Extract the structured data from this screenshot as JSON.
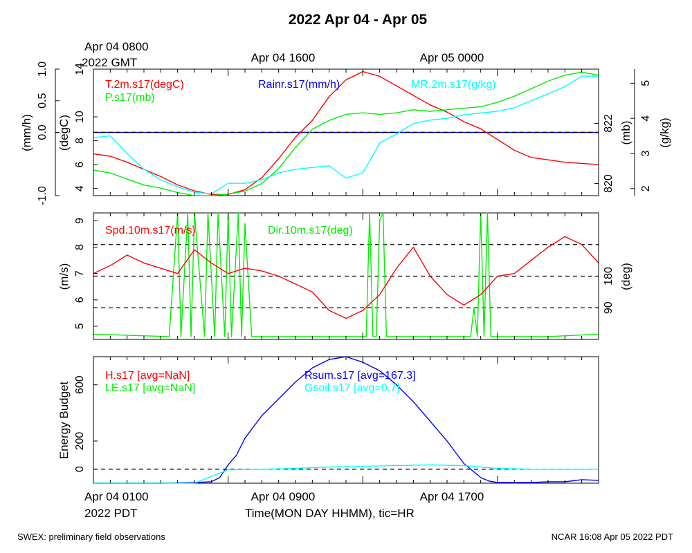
{
  "title": "2022 Apr 04 - Apr 05",
  "top_time_labels": {
    "first_line1": "Apr 04 0800",
    "first_line2": "2022 GMT",
    "second": "Apr 04 1600",
    "third": "Apr 05 0000"
  },
  "bottom_time_labels": {
    "first_line1": "Apr 04 0100",
    "first_line2": "2022 PDT",
    "second": "Apr 04 0900",
    "third": "Apr 04 1700"
  },
  "xlabel": "Time(MON DAY HHMM), tic=HR",
  "footer": {
    "left": "SWEX: preliminary field observations",
    "right": "NCAR 16:08 Apr 05 2022 PDT"
  },
  "colors": {
    "red": "#ff0000",
    "green": "#00ee00",
    "blue": "#0000ff",
    "cyan": "#00ffff",
    "black": "#000000"
  },
  "chart_data": [
    {
      "type": "line",
      "panel": "met",
      "x_unit": "hours since Apr 04 0100 PDT",
      "xlim": [
        0,
        30
      ],
      "axes": {
        "rain": {
          "label": "(mm/h)",
          "ticks": [
            "-1.0",
            "0.0",
            "0.5",
            "1.0"
          ],
          "ylim": [
            -1.0,
            1.0
          ]
        },
        "temp": {
          "label": "(degC)",
          "ticks": [
            "4",
            "6",
            "8",
            "10",
            "14"
          ],
          "ylim": [
            3.4,
            14.0
          ]
        },
        "pres": {
          "label": "(mb)",
          "ticks": [
            "820",
            "822"
          ],
          "ylim": [
            819.6,
            823.8
          ]
        },
        "mr": {
          "label": "(g/kg)",
          "ticks": [
            "2",
            "3",
            "4",
            "5"
          ],
          "ylim": [
            1.8,
            5.4
          ]
        }
      },
      "series": [
        {
          "name": "T.2m.s17(degC)",
          "axis": "temp",
          "color": "red",
          "x": [
            0,
            1,
            2,
            3,
            4,
            5,
            6,
            7,
            8,
            9,
            10,
            11,
            12,
            13,
            14,
            15,
            16,
            17,
            18,
            19,
            20,
            21,
            22,
            23,
            24,
            25,
            26,
            27,
            28,
            29,
            30
          ],
          "y": [
            6.9,
            6.7,
            6.2,
            5.6,
            5.0,
            4.3,
            3.8,
            3.5,
            3.5,
            3.9,
            4.9,
            6.5,
            8.3,
            9.7,
            11.7,
            13.1,
            13.8,
            13.4,
            12.6,
            11.8,
            11.0,
            10.4,
            9.6,
            9.0,
            8.1,
            7.2,
            6.6,
            6.4,
            6.2,
            6.1,
            6.0
          ]
        },
        {
          "name": "P.s17(mb)",
          "axis": "pres",
          "color": "green",
          "x": [
            0,
            1,
            2,
            3,
            4,
            5,
            6,
            7,
            8,
            9,
            10,
            11,
            12,
            13,
            14,
            15,
            16,
            17,
            18,
            19,
            20,
            21,
            22,
            23,
            24,
            25,
            26,
            27,
            28,
            29,
            30
          ],
          "y": [
            820.45,
            820.35,
            820.15,
            819.95,
            819.85,
            819.7,
            819.6,
            819.6,
            819.65,
            819.75,
            820.0,
            820.5,
            821.2,
            821.8,
            822.1,
            822.3,
            822.35,
            822.3,
            822.35,
            822.45,
            822.4,
            822.45,
            822.5,
            822.55,
            822.7,
            822.9,
            823.15,
            823.4,
            823.6,
            823.7,
            823.6
          ]
        },
        {
          "name": "MR.2m.s17(g/kg)",
          "axis": "mr",
          "color": "cyan",
          "x": [
            0,
            1,
            2,
            3,
            4,
            5,
            6,
            7,
            8,
            9,
            10,
            11,
            12,
            13,
            14,
            15,
            16,
            17,
            18,
            19,
            20,
            21,
            22,
            23,
            24,
            25,
            26,
            27,
            28,
            29,
            30
          ],
          "y": [
            3.45,
            3.5,
            3.0,
            2.55,
            2.25,
            2.05,
            1.9,
            1.85,
            2.15,
            2.15,
            2.25,
            2.45,
            2.55,
            2.6,
            2.65,
            2.3,
            2.45,
            3.3,
            3.55,
            3.85,
            3.95,
            4.0,
            4.1,
            4.15,
            4.2,
            4.3,
            4.5,
            4.7,
            4.9,
            5.2,
            5.2
          ]
        },
        {
          "name": "Rainr.s17(mm/h)",
          "axis": "rain",
          "color": "blue",
          "x": [
            0,
            30
          ],
          "y": [
            0.0,
            0.0
          ]
        }
      ],
      "zero_line": {
        "axis": "rain",
        "value": 0.0
      }
    },
    {
      "type": "line",
      "panel": "wind",
      "x_unit": "hours since Apr 04 0100 PDT",
      "xlim": [
        0,
        30
      ],
      "axes": {
        "spd": {
          "label": "(m/s)",
          "ticks": [
            "5",
            "6",
            "7",
            "8",
            "9"
          ],
          "ylim": [
            4.5,
            9.3
          ]
        },
        "dir": {
          "label": "(deg)",
          "ticks": [
            "90",
            "180"
          ],
          "ylim": [
            0,
            360
          ]
        }
      },
      "dashed_lines_deg": [
        90,
        180,
        270
      ],
      "series": [
        {
          "name": "Spd.10m.s17(m/s)",
          "axis": "spd",
          "color": "red",
          "x": [
            0,
            1,
            2,
            3,
            4,
            5,
            6,
            7,
            8,
            9,
            10,
            11,
            12,
            13,
            14,
            15,
            16,
            17,
            18,
            19,
            20,
            21,
            22,
            23,
            24,
            25,
            26,
            27,
            28,
            29,
            30
          ],
          "y": [
            7.0,
            7.3,
            7.7,
            7.4,
            7.2,
            7.0,
            7.9,
            7.4,
            7.0,
            7.2,
            7.1,
            6.9,
            6.6,
            6.3,
            5.6,
            5.3,
            5.6,
            6.2,
            7.2,
            8.0,
            6.9,
            6.2,
            5.8,
            6.2,
            6.9,
            7.0,
            7.5,
            8.0,
            8.4,
            8.1,
            7.4
          ]
        },
        {
          "name": "Dir.10m.s17(deg)",
          "axis": "dir",
          "color": "green",
          "x": [
            0,
            4.5,
            5.0,
            5.2,
            5.6,
            5.8,
            6.0,
            6.6,
            6.8,
            7.2,
            7.4,
            7.8,
            8.0,
            8.2,
            8.6,
            8.8,
            9.0,
            9.4,
            10,
            15,
            16.2,
            16.4,
            16.6,
            16.8,
            17.0,
            17.2,
            17.4,
            17.6,
            18,
            22,
            22.4,
            22.6,
            22.8,
            23.0,
            23.2,
            23.4,
            23.6,
            24,
            27,
            30
          ],
          "y": [
            15,
            8,
            360,
            8,
            360,
            8,
            360,
            8,
            360,
            8,
            360,
            8,
            360,
            8,
            360,
            8,
            330,
            8,
            8,
            8,
            8,
            360,
            8,
            8,
            340,
            360,
            8,
            8,
            8,
            8,
            8,
            90,
            8,
            360,
            8,
            360,
            8,
            8,
            8,
            15
          ]
        }
      ]
    },
    {
      "type": "line",
      "panel": "energy",
      "x_unit": "hours since Apr 04 0100 PDT",
      "xlim": [
        0,
        30
      ],
      "ylabel": "Energy Budget",
      "yticks": [
        "0",
        "200",
        "600"
      ],
      "ylim": [
        -100,
        800
      ],
      "series": [
        {
          "name": "H.s17 [avg=NaN]",
          "color": "red",
          "x": [],
          "y": []
        },
        {
          "name": "LE.s17 [avg=NaN]",
          "color": "green",
          "x": [],
          "y": []
        },
        {
          "name": "Rsum.s17 [avg=167.3]",
          "color": "blue",
          "x": [
            0,
            2,
            4,
            6,
            7,
            7.5,
            8,
            8.5,
            9,
            10,
            11,
            12,
            13,
            14,
            15,
            16,
            17,
            18,
            19,
            20,
            21,
            22,
            23,
            23.5,
            24,
            25,
            26,
            27,
            28,
            29,
            30
          ],
          "y": [
            -100,
            -100,
            -100,
            -95,
            -90,
            -60,
            30,
            100,
            220,
            380,
            500,
            620,
            720,
            780,
            800,
            760,
            700,
            600,
            480,
            340,
            200,
            40,
            -60,
            -85,
            -95,
            -95,
            -95,
            -90,
            -90,
            -75,
            -80
          ]
        },
        {
          "name": "Gsoil.s17 [avg=0.7]",
          "color": "cyan",
          "x": [
            0,
            2,
            4,
            6,
            8,
            10,
            12,
            14,
            16,
            18,
            20,
            22,
            24,
            26,
            28,
            30
          ],
          "y": [
            -100,
            -100,
            -100,
            -100,
            -5,
            0,
            5,
            15,
            20,
            25,
            30,
            25,
            5,
            0,
            0,
            0
          ]
        }
      ],
      "zero_line": {
        "value": 0
      }
    }
  ]
}
